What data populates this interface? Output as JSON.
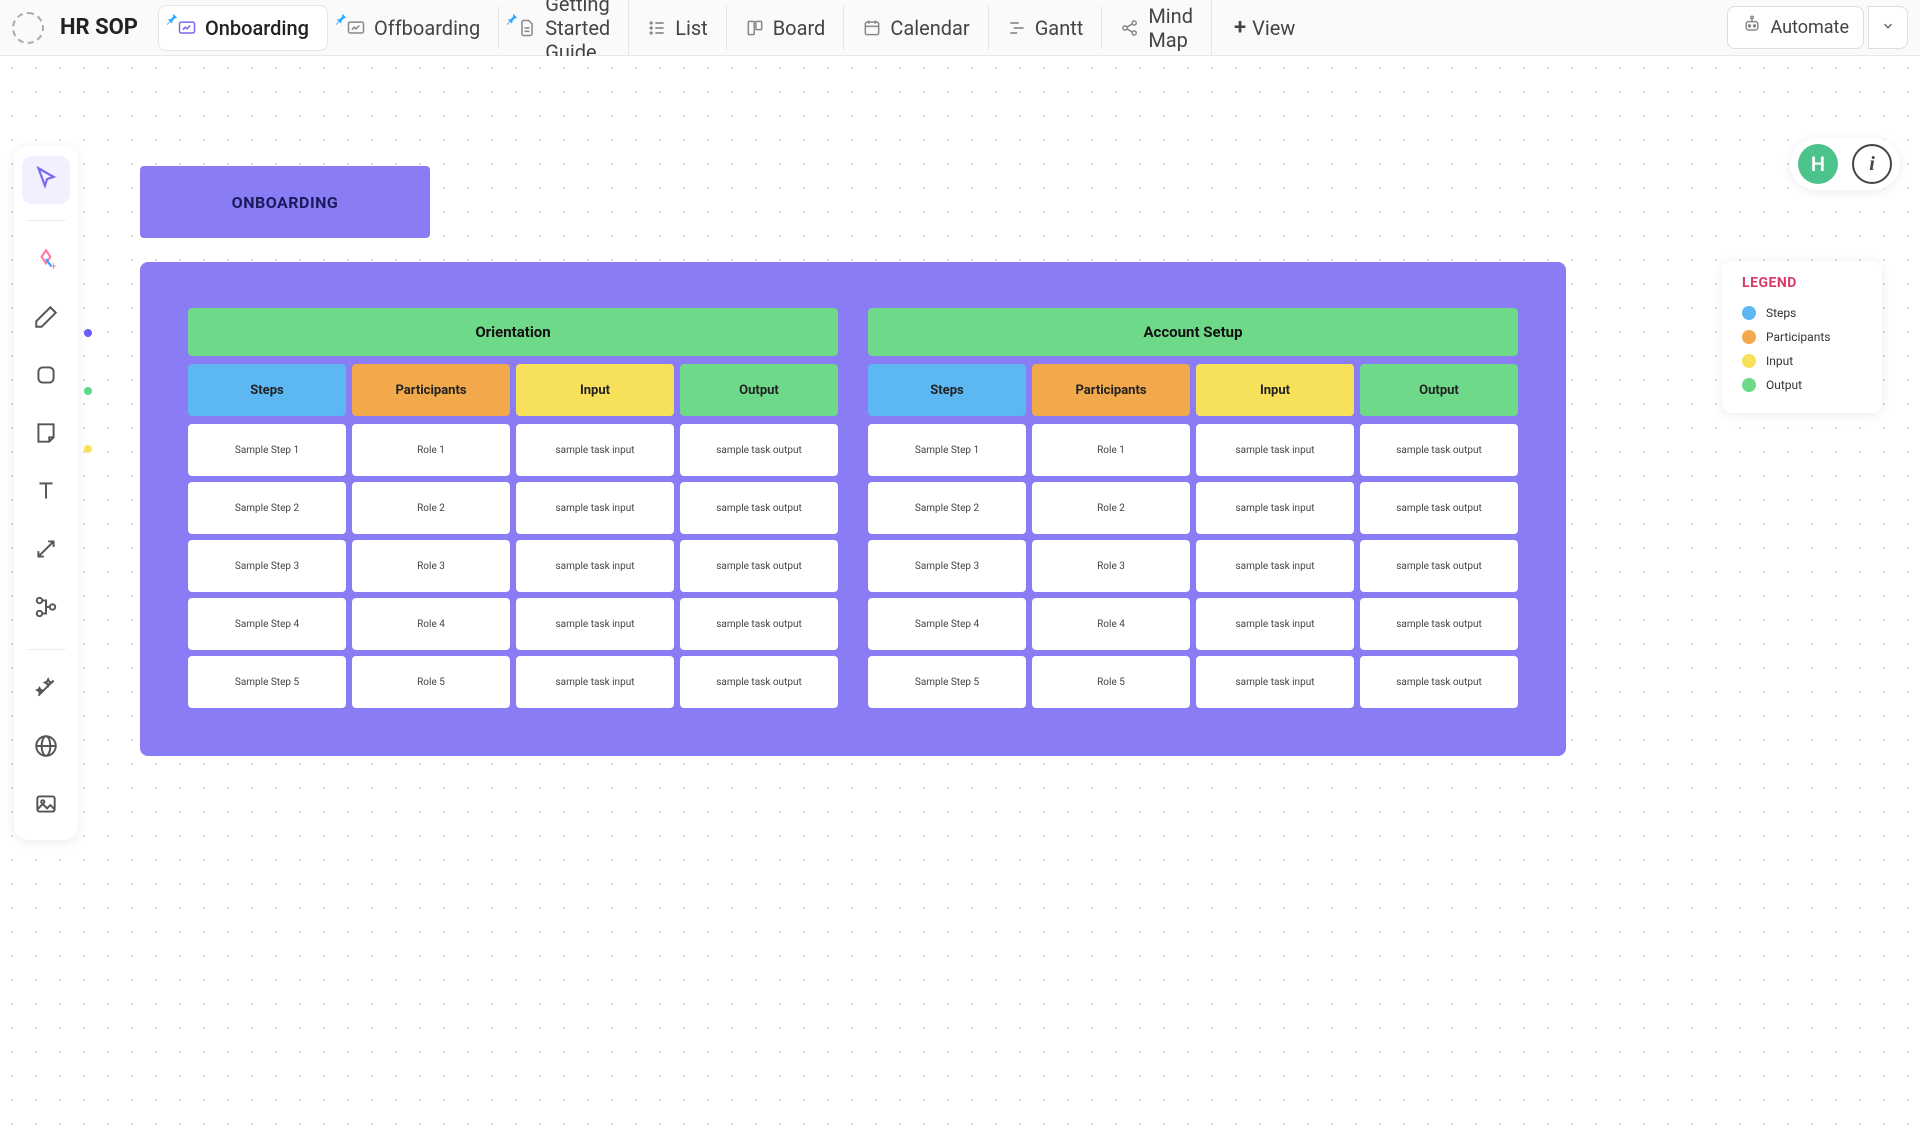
{
  "app": {
    "title": "HR SOP"
  },
  "topbar": {
    "tabs": [
      {
        "label": "Onboarding",
        "icon": "whiteboard",
        "pinned": true,
        "active": true
      },
      {
        "label": "Offboarding",
        "icon": "whiteboard",
        "pinned": true,
        "active": false
      },
      {
        "label": "Getting Started Guide",
        "icon": "doc",
        "pinned": true,
        "active": false
      },
      {
        "label": "List",
        "icon": "list",
        "pinned": false,
        "active": false
      },
      {
        "label": "Board",
        "icon": "board",
        "pinned": false,
        "active": false
      },
      {
        "label": "Calendar",
        "icon": "calendar",
        "pinned": false,
        "active": false
      },
      {
        "label": "Gantt",
        "icon": "gantt",
        "pinned": false,
        "active": false
      },
      {
        "label": "Mind Map",
        "icon": "mindmap",
        "pinned": false,
        "active": false
      }
    ],
    "add_view_label": "View",
    "automate_label": "Automate"
  },
  "user": {
    "initial": "H",
    "avatar_color": "#4bc38a"
  },
  "colors": {
    "brand_purple": "#8a7cf4",
    "panel_purple": "#8a7cf4",
    "section_green": "#6fd98a",
    "steps_blue": "#5cb7f2",
    "participants_orange": "#f2a94b",
    "input_yellow": "#f7e15a",
    "output_green": "#6fd98a",
    "legend_title": "#d93868",
    "pin_blue": "#2ea8ff"
  },
  "toolbar": {
    "tools": [
      "cursor",
      "ai-shape",
      "pen",
      "shape",
      "note",
      "text",
      "connector",
      "org",
      "magic",
      "web",
      "image"
    ],
    "side_dots": [
      {
        "tool_index": 2,
        "color": "#6b5cff"
      },
      {
        "tool_index": 3,
        "color": "#5bd987"
      },
      {
        "tool_index": 4,
        "color": "#f7e15a"
      }
    ]
  },
  "board": {
    "title_label": "ONBOARDING",
    "title_bg": "#8a7cf4",
    "title_text": "#1a1a5c",
    "panel_bg": "#8a7cf4",
    "columns": [
      "Steps",
      "Participants",
      "Input",
      "Output"
    ],
    "column_colors": [
      "#5cb7f2",
      "#f2a94b",
      "#f7e15a",
      "#6fd98a"
    ],
    "sections": [
      {
        "title": "Orientation",
        "title_bg": "#6fd98a",
        "rows": [
          [
            "Sample Step 1",
            "Role 1",
            "sample task input",
            "sample task output"
          ],
          [
            "Sample Step 2",
            "Role 2",
            "sample task input",
            "sample task output"
          ],
          [
            "Sample Step 3",
            "Role 3",
            "sample task input",
            "sample task output"
          ],
          [
            "Sample Step 4",
            "Role 4",
            "sample task input",
            "sample task output"
          ],
          [
            "Sample Step 5",
            "Role 5",
            "sample task input",
            "sample task output"
          ]
        ]
      },
      {
        "title": "Account Setup",
        "title_bg": "#6fd98a",
        "rows": [
          [
            "Sample Step 1",
            "Role 1",
            "sample task input",
            "sample task output"
          ],
          [
            "Sample Step 2",
            "Role 2",
            "sample task input",
            "sample task output"
          ],
          [
            "Sample Step 3",
            "Role 3",
            "sample task input",
            "sample task output"
          ],
          [
            "Sample Step 4",
            "Role 4",
            "sample task input",
            "sample task output"
          ],
          [
            "Sample Step 5",
            "Role 5",
            "sample task input",
            "sample task output"
          ]
        ]
      }
    ]
  },
  "legend": {
    "title": "LEGEND",
    "items": [
      {
        "label": "Steps",
        "color": "#5cb7f2"
      },
      {
        "label": "Participants",
        "color": "#f2a94b"
      },
      {
        "label": "Input",
        "color": "#f7e15a"
      },
      {
        "label": "Output",
        "color": "#6fd98a"
      }
    ]
  }
}
